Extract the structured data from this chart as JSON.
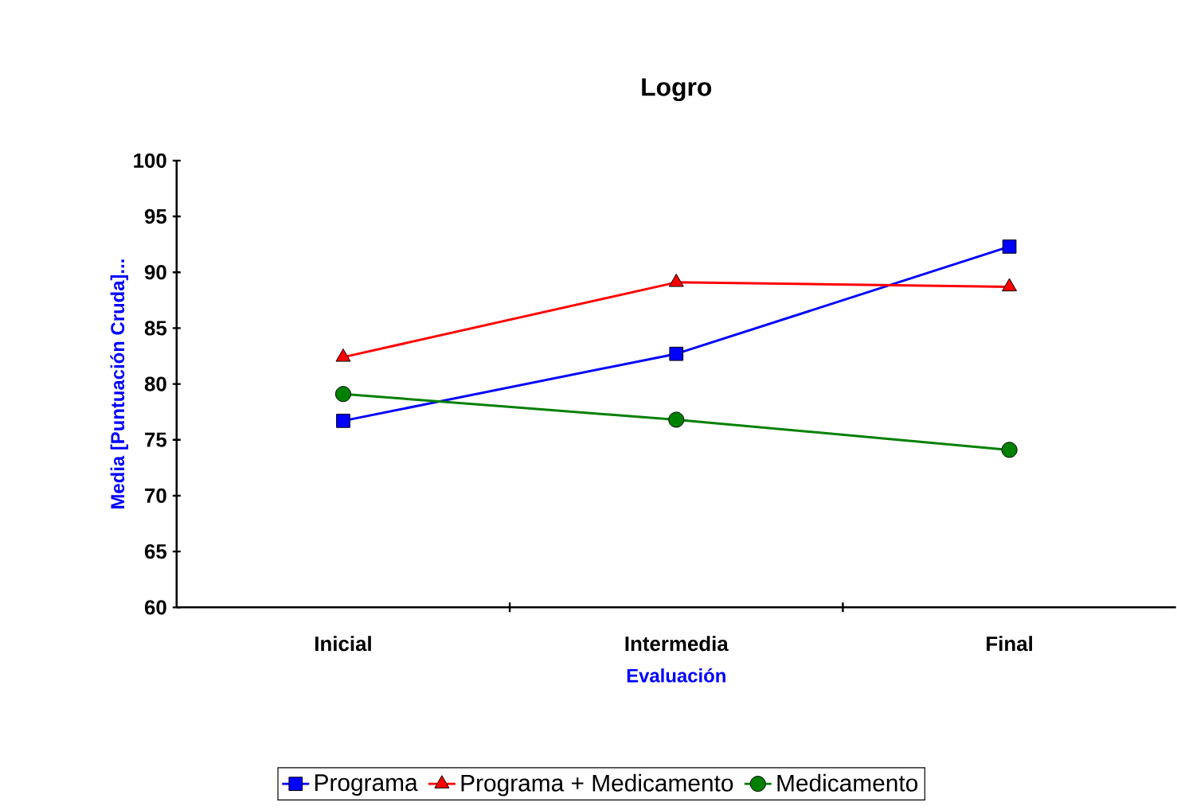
{
  "chart_data": {
    "type": "line",
    "title": "Logro",
    "xlabel": "Evaluación",
    "ylabel": "Media [Puntuación Cruda]...",
    "categories": [
      "Inicial",
      "Intermedia",
      "Final"
    ],
    "series": [
      {
        "name": "Programa",
        "color": "#0000ff",
        "marker": "square",
        "values": [
          76.7,
          82.7,
          92.3
        ]
      },
      {
        "name": "Programa + Medicamento",
        "color": "#ff0000",
        "marker": "triangle",
        "values": [
          82.4,
          89.1,
          88.7
        ]
      },
      {
        "name": "Medicamento",
        "color": "#008000",
        "marker": "circle",
        "values": [
          79.1,
          76.8,
          74.1
        ]
      }
    ],
    "ylim": [
      60,
      100
    ],
    "yticks": [
      60,
      65,
      70,
      75,
      80,
      85,
      90,
      95,
      100
    ],
    "grid": false,
    "legend": "bottom",
    "line_style": "solid"
  }
}
